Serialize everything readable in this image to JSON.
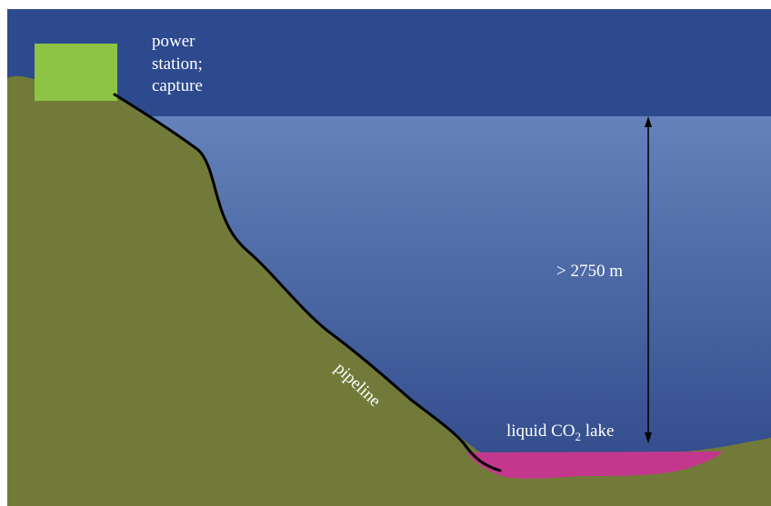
{
  "colors": {
    "sky": "#2d4a8e",
    "water_top": "#6482bb",
    "water_bottom": "#2e4788",
    "land": "#717a38",
    "station": "#8ec444",
    "lake": "#c4378f",
    "pipeline": "#000000",
    "text": "#ffffff"
  },
  "labels": {
    "station_line1": "power",
    "station_line2": "station;",
    "station_line3": "capture",
    "depth": "> 2750 m",
    "lake_prefix": "liquid CO",
    "lake_sub": "2",
    "lake_suffix": " lake",
    "pipeline": "pipeline"
  }
}
